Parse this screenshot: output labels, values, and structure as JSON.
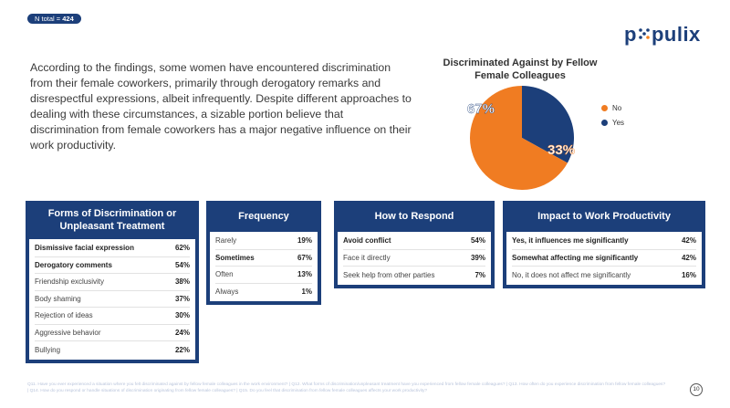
{
  "header": {
    "ntotal_label": "N total = ",
    "ntotal_value": "424"
  },
  "logo": {
    "text_left": "p",
    "text_right": "pulix",
    "brand_color": "#1c3f7a",
    "dot_color": "#f58220"
  },
  "summary": "According to the findings, some women have encountered discrimination from their female coworkers, primarily through derogatory remarks and disrespectful expressions, albeit infrequently. Despite different approaches to dealing with these circumstances, a sizable portion believe that discrimination from female coworkers has a major negative influence on their work productivity.",
  "chart_data": {
    "type": "pie",
    "title": "Discriminated Against by Fellow Female Colleagues",
    "categories": [
      "No",
      "Yes"
    ],
    "values": [
      67,
      33
    ],
    "labels": [
      "67%",
      "33%"
    ],
    "colors": [
      "#f07c22",
      "#1c3f7a"
    ],
    "legend": "right"
  },
  "panels": [
    {
      "title": "Forms of Discrimination or Unpleasant Treatment",
      "rows": [
        {
          "label": "Dismissive facial expression",
          "value": "62%",
          "highlight": true
        },
        {
          "label": "Derogatory comments",
          "value": "54%",
          "highlight": true
        },
        {
          "label": "Friendship exclusivity",
          "value": "38%",
          "highlight": false
        },
        {
          "label": "Body shaming",
          "value": "37%",
          "highlight": false
        },
        {
          "label": "Rejection of ideas",
          "value": "30%",
          "highlight": false
        },
        {
          "label": "Aggressive behavior",
          "value": "24%",
          "highlight": false
        },
        {
          "label": "Bullying",
          "value": "22%",
          "highlight": false
        }
      ]
    },
    {
      "title": "Frequency",
      "rows": [
        {
          "label": "Rarely",
          "value": "19%",
          "highlight": false
        },
        {
          "label": "Sometimes",
          "value": "67%",
          "highlight": true
        },
        {
          "label": "Often",
          "value": "13%",
          "highlight": false
        },
        {
          "label": "Always",
          "value": "1%",
          "highlight": false
        }
      ]
    },
    {
      "title": "How to Respond",
      "rows": [
        {
          "label": "Avoid conflict",
          "value": "54%",
          "highlight": true
        },
        {
          "label": "Face it directly",
          "value": "39%",
          "highlight": false
        },
        {
          "label": "Seek help from other parties",
          "value": "7%",
          "highlight": false
        }
      ]
    },
    {
      "title": "Impact to Work Productivity",
      "rows": [
        {
          "label": "Yes, it influences me significantly",
          "value": "42%",
          "highlight": true
        },
        {
          "label": "Somewhat affecting me significantly",
          "value": "42%",
          "highlight": true
        },
        {
          "label": "No, it does not affect me significantly",
          "value": "16%",
          "highlight": false
        }
      ]
    }
  ],
  "footnote": "Q11. Have you ever experienced a situation where you felt discriminated against by fellow female colleagues in the work environment? | Q12. What forms of discrimination/unpleasant treatment have you experienced from fellow female colleagues? | Q13. How often do you experience discrimination from fellow female colleagues? | Q14. How do you respond or handle situations of discrimination originating from fellow female colleagues? | Q15. Do you feel that discrimination from fellow female colleagues affects your work productivity?",
  "page_number": "10"
}
